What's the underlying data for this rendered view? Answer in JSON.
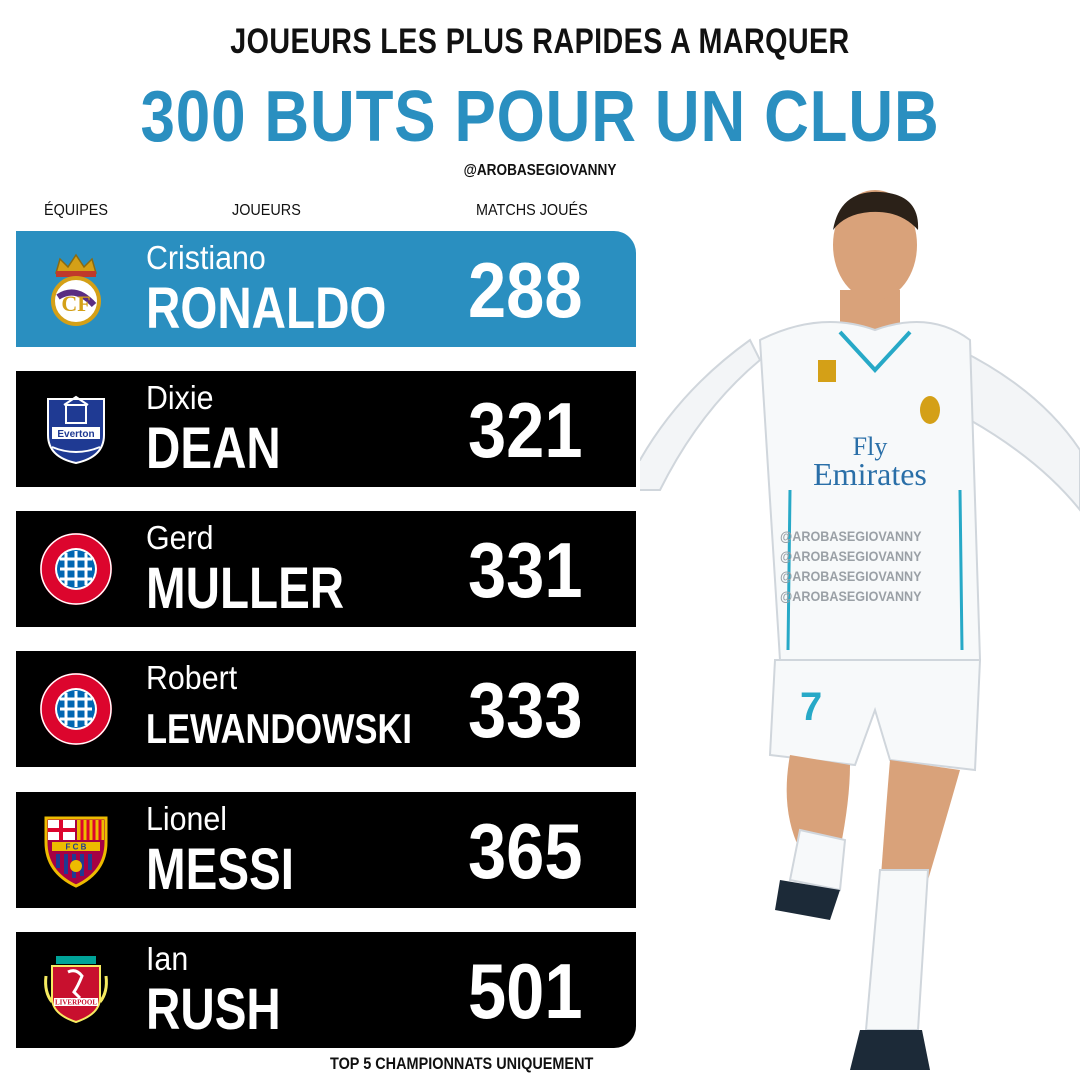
{
  "header": {
    "subtitle": "JOUEURS LES PLUS RAPIDES A MARQUER",
    "title": "300 BUTS POUR UN CLUB",
    "handle": "@AROBASEGIOVANNY"
  },
  "columns": {
    "teams": "ÉQUIPES",
    "players": "JOUEURS",
    "matches": "MATCHS JOUÉS"
  },
  "rows": [
    {
      "first": "Cristiano",
      "last": "RONALDO",
      "matches": "288",
      "club_icon": "real-madrid-crest-icon"
    },
    {
      "first": "Dixie",
      "last": "DEAN",
      "matches": "321",
      "club_icon": "everton-crest-icon"
    },
    {
      "first": "Gerd",
      "last": "MULLER",
      "matches": "331",
      "club_icon": "bayern-munchen-crest-icon"
    },
    {
      "first": "Robert",
      "last": "LEWANDOWSKI",
      "matches": "333",
      "club_icon": "bayern-munchen-crest-icon"
    },
    {
      "first": "Lionel",
      "last": "MESSI",
      "matches": "365",
      "club_icon": "fc-barcelona-crest-icon"
    },
    {
      "first": "Ian",
      "last": "RUSH",
      "matches": "501",
      "club_icon": "liverpool-crest-icon"
    }
  ],
  "footnote": "TOP 5 CHAMPIONNATS UNIQUEMENT",
  "watermark": "@AROBASEGIOVANNY",
  "colors": {
    "accent": "#2a8fc0",
    "row": "#000000"
  }
}
